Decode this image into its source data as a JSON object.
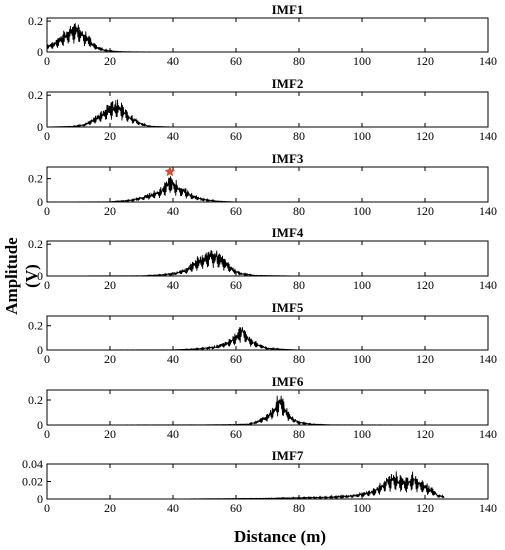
{
  "figure": {
    "ylabel": "Amplitude (V)",
    "xlabel": "Distance (m)"
  },
  "chart_data": [
    {
      "type": "line",
      "title": "IMF1",
      "xlim": [
        0,
        140
      ],
      "ylim": [
        0,
        0.22
      ],
      "xticks": [
        0,
        20,
        40,
        60,
        80,
        100,
        120,
        140
      ],
      "yticks": [
        0,
        0.2
      ],
      "ytick_labels": [
        "0",
        "0.2"
      ],
      "series": [
        {
          "x": [
            0,
            2,
            4,
            6,
            8,
            10,
            12,
            14,
            16,
            18,
            20,
            22,
            24,
            26,
            30,
            40,
            60,
            80,
            100,
            120,
            126
          ],
          "y": [
            0.05,
            0.07,
            0.11,
            0.16,
            0.21,
            0.2,
            0.15,
            0.09,
            0.04,
            0.02,
            0.01,
            0.005,
            0.003,
            0.002,
            0.001,
            0,
            0,
            0,
            0,
            0,
            0
          ]
        }
      ]
    },
    {
      "type": "line",
      "title": "IMF2",
      "xlim": [
        0,
        140
      ],
      "ylim": [
        0,
        0.22
      ],
      "xticks": [
        0,
        20,
        40,
        60,
        80,
        100,
        120,
        140
      ],
      "yticks": [
        0,
        0.2
      ],
      "ytick_labels": [
        "0",
        "0.2"
      ],
      "series": [
        {
          "x": [
            0,
            8,
            12,
            14,
            16,
            18,
            20,
            22,
            24,
            26,
            28,
            30,
            32,
            34,
            40,
            60,
            100,
            126
          ],
          "y": [
            0,
            0.005,
            0.02,
            0.05,
            0.09,
            0.13,
            0.17,
            0.19,
            0.15,
            0.1,
            0.06,
            0.03,
            0.01,
            0.005,
            0,
            0,
            0,
            0
          ]
        }
      ]
    },
    {
      "type": "line",
      "title": "IMF3",
      "xlim": [
        0,
        140
      ],
      "ylim": [
        0,
        0.3
      ],
      "xticks": [
        0,
        20,
        40,
        60,
        80,
        100,
        120,
        140
      ],
      "yticks": [
        0,
        0.2
      ],
      "ytick_labels": [
        "0",
        "0.2"
      ],
      "annotations": [
        {
          "shape": "star",
          "x": 39,
          "y": 0.26
        }
      ],
      "series": [
        {
          "x": [
            0,
            20,
            26,
            30,
            33,
            36,
            38,
            39,
            40,
            42,
            44,
            46,
            48,
            50,
            54,
            60,
            100,
            126
          ],
          "y": [
            0,
            0.002,
            0.02,
            0.05,
            0.09,
            0.13,
            0.2,
            0.26,
            0.22,
            0.17,
            0.12,
            0.08,
            0.05,
            0.03,
            0.01,
            0,
            0,
            0
          ]
        }
      ]
    },
    {
      "type": "line",
      "title": "IMF4",
      "xlim": [
        0,
        140
      ],
      "ylim": [
        0,
        0.22
      ],
      "xticks": [
        0,
        20,
        40,
        60,
        80,
        100,
        120,
        140
      ],
      "yticks": [
        0,
        0.2
      ],
      "ytick_labels": [
        "0",
        "0.2"
      ],
      "series": [
        {
          "x": [
            0,
            30,
            36,
            40,
            44,
            46,
            48,
            50,
            52,
            54,
            56,
            58,
            60,
            62,
            66,
            80,
            126
          ],
          "y": [
            0,
            0.002,
            0.01,
            0.02,
            0.05,
            0.09,
            0.13,
            0.17,
            0.2,
            0.18,
            0.13,
            0.08,
            0.04,
            0.02,
            0.005,
            0,
            0
          ]
        }
      ]
    },
    {
      "type": "line",
      "title": "IMF5",
      "xlim": [
        0,
        140
      ],
      "ylim": [
        0,
        0.28
      ],
      "xticks": [
        0,
        20,
        40,
        60,
        80,
        100,
        120,
        140
      ],
      "yticks": [
        0,
        0.2
      ],
      "ytick_labels": [
        "0",
        "0.2"
      ],
      "series": [
        {
          "x": [
            0,
            40,
            46,
            50,
            54,
            56,
            58,
            60,
            61,
            62,
            63,
            64,
            66,
            68,
            70,
            74,
            80,
            126
          ],
          "y": [
            0,
            0.002,
            0.01,
            0.02,
            0.04,
            0.07,
            0.1,
            0.15,
            0.2,
            0.25,
            0.2,
            0.13,
            0.08,
            0.05,
            0.02,
            0.01,
            0,
            0
          ]
        }
      ]
    },
    {
      "type": "line",
      "title": "IMF6",
      "xlim": [
        0,
        140
      ],
      "ylim": [
        0,
        0.28
      ],
      "xticks": [
        0,
        20,
        40,
        60,
        80,
        100,
        120,
        140
      ],
      "yticks": [
        0,
        0.2
      ],
      "ytick_labels": [
        "0",
        "0.2"
      ],
      "series": [
        {
          "x": [
            0,
            50,
            60,
            64,
            66,
            68,
            70,
            72,
            73,
            74,
            75,
            76,
            78,
            80,
            84,
            90,
            126
          ],
          "y": [
            0,
            0.002,
            0.005,
            0.01,
            0.03,
            0.06,
            0.1,
            0.17,
            0.25,
            0.28,
            0.22,
            0.15,
            0.07,
            0.03,
            0.01,
            0.002,
            0
          ]
        }
      ]
    },
    {
      "type": "line",
      "title": "IMF7",
      "xlim": [
        0,
        140
      ],
      "ylim": [
        0,
        0.04
      ],
      "xticks": [
        0,
        20,
        40,
        60,
        80,
        100,
        120,
        140
      ],
      "yticks": [
        0,
        0.02,
        0.04
      ],
      "ytick_labels": [
        "0",
        "0.02",
        "0.04"
      ],
      "series": [
        {
          "x": [
            0,
            40,
            70,
            80,
            90,
            96,
            100,
            104,
            106,
            108,
            110,
            112,
            114,
            116,
            118,
            120,
            122,
            124,
            126
          ],
          "y": [
            0,
            0,
            0.001,
            0.002,
            0.003,
            0.005,
            0.008,
            0.013,
            0.02,
            0.03,
            0.035,
            0.03,
            0.026,
            0.034,
            0.028,
            0.02,
            0.015,
            0.006,
            0.004
          ]
        }
      ]
    }
  ]
}
